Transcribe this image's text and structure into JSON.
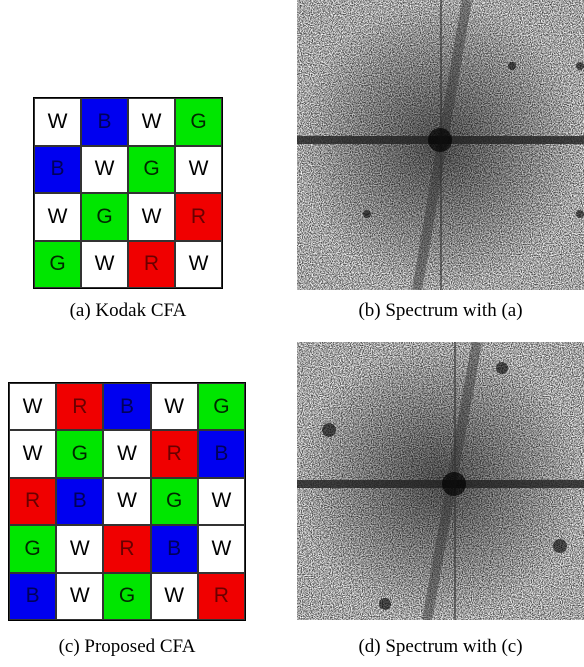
{
  "panels": [
    {
      "grid": [
        [
          "W",
          "B",
          "W",
          "G"
        ],
        [
          "B",
          "W",
          "G",
          "W"
        ],
        [
          "W",
          "G",
          "W",
          "R"
        ],
        [
          "G",
          "W",
          "R",
          "W"
        ]
      ],
      "caption": "(a) Kodak CFA"
    },
    {
      "caption": "(b) Spectrum with (a)"
    },
    {
      "grid": [
        [
          "W",
          "R",
          "B",
          "W",
          "G"
        ],
        [
          "W",
          "G",
          "W",
          "R",
          "B"
        ],
        [
          "R",
          "B",
          "W",
          "G",
          "W"
        ],
        [
          "G",
          "W",
          "R",
          "B",
          "W"
        ],
        [
          "B",
          "W",
          "G",
          "W",
          "R"
        ]
      ],
      "caption": "(c) Proposed CFA"
    },
    {
      "caption": "(d) Spectrum with (c)"
    }
  ],
  "cell_colors": {
    "W": "#ffffff",
    "B": "#0000f0",
    "G": "#00e600",
    "R": "#f00000"
  },
  "text_colors": {
    "W": "#000000",
    "B": "#00005a",
    "G": "#002800",
    "R": "#6a0000"
  }
}
